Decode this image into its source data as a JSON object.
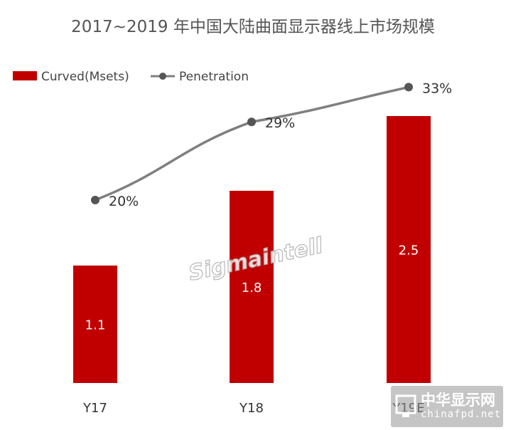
{
  "chart_data": {
    "type": "bar",
    "title": "2017~2019 年中国大陆曲面显示器线上市场规模",
    "categories": [
      "Y17",
      "Y18",
      "Y19E"
    ],
    "series": [
      {
        "name": "Curved(Msets)",
        "kind": "bar",
        "values": [
          1.1,
          1.8,
          2.5
        ],
        "labels": [
          "1.1",
          "1.8",
          "2.5"
        ],
        "color": "#c00000"
      },
      {
        "name": "Penetration",
        "kind": "line",
        "values": [
          20,
          29,
          33
        ],
        "labels": [
          "20%",
          "29%",
          "33%"
        ],
        "color": "#7f7f7f"
      }
    ],
    "legend_position": "top-left",
    "grid": false
  },
  "watermark": "Sigmaintell",
  "logo": {
    "name": "中华显示网",
    "url": "chinafpd.net"
  }
}
